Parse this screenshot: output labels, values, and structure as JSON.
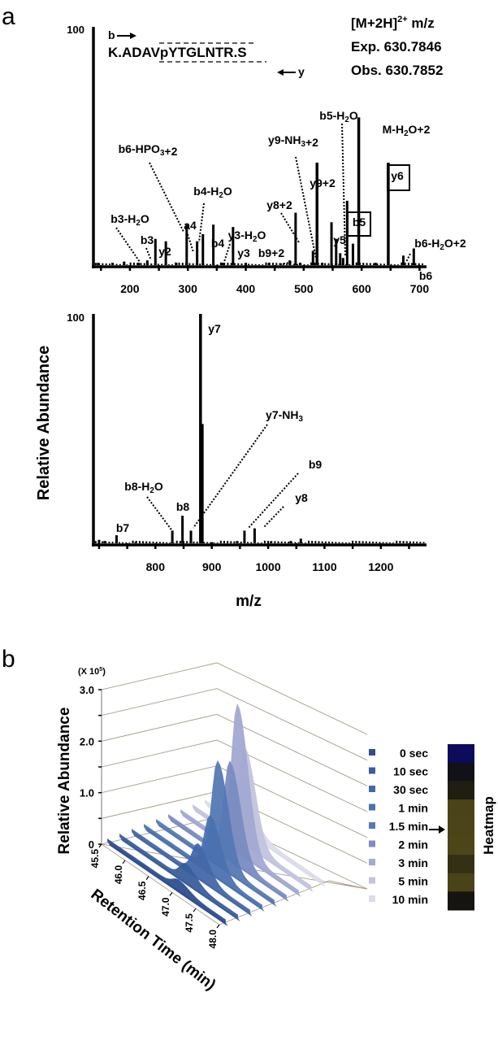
{
  "chart_data": [
    {
      "panel": "a",
      "type": "bar",
      "subtype": "ms-ms-spectrum",
      "xlabel": "m/z",
      "ylabel": "Relative Abundance",
      "y_top_label": "100",
      "xlim": [
        137,
        712
      ],
      "ylim": [
        0,
        100
      ],
      "xticks": [
        200,
        300,
        400,
        500,
        600,
        700
      ],
      "peptide": {
        "sequence": "K.ADAVpYTGLNTR.S",
        "b_label": "b",
        "y_label": "y"
      },
      "precursor": {
        "line1": "[M+2H]",
        "line1_sup": "2+",
        "line1_suffix": " m/z",
        "exp": "Exp. 630.7846",
        "obs": "Obs. 630.7852"
      },
      "peaks": [
        {
          "mz": 145,
          "intensity": 1
        },
        {
          "mz": 170,
          "intensity": 1
        },
        {
          "mz": 190,
          "intensity": 1.5
        },
        {
          "mz": 215,
          "intensity": 1
        },
        {
          "mz": 230,
          "intensity": 2,
          "label": "b3-H2O"
        },
        {
          "mz": 244,
          "intensity": 11,
          "label": "b3"
        },
        {
          "mz": 262,
          "intensity": 10,
          "label": "y2"
        },
        {
          "mz": 280,
          "intensity": 1
        },
        {
          "mz": 298,
          "intensity": 17,
          "label": "b6-HPO3+2",
          "note": "dotted leader"
        },
        {
          "mz": 316,
          "intensity": 10,
          "label": "a4"
        },
        {
          "mz": 326,
          "intensity": 13,
          "label": "b4-H2O"
        },
        {
          "mz": 344,
          "intensity": 17,
          "label": "b4"
        },
        {
          "mz": 360,
          "intensity": 1,
          "label": "y3-H2O"
        },
        {
          "mz": 378,
          "intensity": 16,
          "label": "y3"
        },
        {
          "mz": 400,
          "intensity": 1
        },
        {
          "mz": 440,
          "intensity": 1
        },
        {
          "mz": 476,
          "intensity": 2,
          "label": "b9+2"
        },
        {
          "mz": 486,
          "intensity": 22,
          "label": "y8+2"
        },
        {
          "mz": 494,
          "intensity": 1
        },
        {
          "mz": 516,
          "intensity": 6,
          "label": "y9-NH3+2"
        },
        {
          "mz": 523,
          "intensity": 43,
          "label": "y9+2"
        },
        {
          "mz": 532,
          "intensity": 1
        },
        {
          "mz": 548,
          "intensity": 18,
          "label": "y5"
        },
        {
          "mz": 556,
          "intensity": 11
        },
        {
          "mz": 563,
          "intensity": 5,
          "label": "b5-H2O"
        },
        {
          "mz": 568,
          "intensity": 3
        },
        {
          "mz": 575,
          "intensity": 27,
          "label": "b5",
          "boxed": true
        },
        {
          "mz": 585,
          "intensity": 9
        },
        {
          "mz": 595,
          "intensity": 62,
          "label": "M-H2O+2"
        },
        {
          "mz": 624,
          "intensity": 1
        },
        {
          "mz": 646,
          "intensity": 43,
          "label": "y6",
          "boxed": true
        },
        {
          "mz": 672,
          "intensity": 4,
          "label": "b6-H2O+2"
        },
        {
          "mz": 690,
          "intensity": 7,
          "label": "b6"
        }
      ]
    },
    {
      "panel": "a-lower",
      "type": "bar",
      "subtype": "ms-ms-spectrum",
      "xlabel": "m/z",
      "ylabel": "Relative Abundance",
      "y_top_label": "100",
      "xlim": [
        690,
        1281
      ],
      "ylim": [
        0,
        100
      ],
      "xticks": [
        800,
        900,
        1000,
        1100,
        1200
      ],
      "peaks": [
        {
          "mz": 700,
          "intensity": 1.5
        },
        {
          "mz": 710,
          "intensity": 1
        },
        {
          "mz": 731,
          "intensity": 3.5,
          "label": "b7"
        },
        {
          "mz": 765,
          "intensity": 0.5
        },
        {
          "mz": 830,
          "intensity": 5.5,
          "label": "b8-H2O"
        },
        {
          "mz": 848,
          "intensity": 12,
          "label": "b8"
        },
        {
          "mz": 863,
          "intensity": 5.5,
          "label": "y7-NH3"
        },
        {
          "mz": 880,
          "intensity": 100,
          "label": "y7"
        },
        {
          "mz": 883,
          "intensity": 52
        },
        {
          "mz": 900,
          "intensity": 0.5
        },
        {
          "mz": 945,
          "intensity": 1
        },
        {
          "mz": 958,
          "intensity": 5.5,
          "label": "b9"
        },
        {
          "mz": 976,
          "intensity": 6.5,
          "label": "y8"
        },
        {
          "mz": 1005,
          "intensity": 0.8
        },
        {
          "mz": 1040,
          "intensity": 1
        },
        {
          "mz": 1058,
          "intensity": 2
        }
      ]
    },
    {
      "panel": "b",
      "type": "area",
      "subtype": "3d-stacked-chromatogram",
      "title": "",
      "yunit": "(X 10",
      "yunit_sup": "5",
      "yunit_close": ")",
      "ylabel": "Relative Abundance",
      "xlabel": "Retention Time (min)",
      "ylim": [
        0,
        3.0
      ],
      "yticks": [
        "0",
        "1.0",
        "2.0",
        "3.0"
      ],
      "xticks": [
        "45.5",
        "46.0",
        "46.5",
        "47.0",
        "47.5",
        "48.0"
      ],
      "series": [
        {
          "name": "0 sec",
          "color": "#2e4f8f",
          "peak_rt": 47.0,
          "peak": 0.15
        },
        {
          "name": "10 sec",
          "color": "#3a5e9c",
          "peak_rt": 46.9,
          "peak": 0.3
        },
        {
          "name": "30 sec",
          "color": "#4468a8",
          "peak_rt": 46.9,
          "peak": 0.6
        },
        {
          "name": "1 min",
          "color": "#4b72b0",
          "peak_rt": 46.9,
          "peak": 1.05
        },
        {
          "name": "1.5 min",
          "color": "#5679b4",
          "peak_rt": 46.8,
          "peak": 1.95
        },
        {
          "name": "2 min",
          "color": "#7a8cc2",
          "peak_rt": 46.8,
          "peak": 1.85
        },
        {
          "name": "3 min",
          "color": "#a3a9d2",
          "peak_rt": 46.7,
          "peak": 2.8
        },
        {
          "name": "5 min",
          "color": "#c2c4df",
          "peak_rt": 46.6,
          "peak": 1.8
        },
        {
          "name": "10 min",
          "color": "#dcdde9",
          "peak_rt": 46.5,
          "peak": 0.25
        }
      ],
      "heatmap": {
        "label": "Heatmap",
        "arrow_at": "1.5 min",
        "cells": [
          "#0d0b5c",
          "#121019",
          "#201e12",
          "#4a4318",
          "#4a4418",
          "#4b4518",
          "#352f14",
          "#4a4318",
          "#161410"
        ]
      }
    }
  ],
  "panel_labels": {
    "a": "a",
    "b": "b"
  }
}
